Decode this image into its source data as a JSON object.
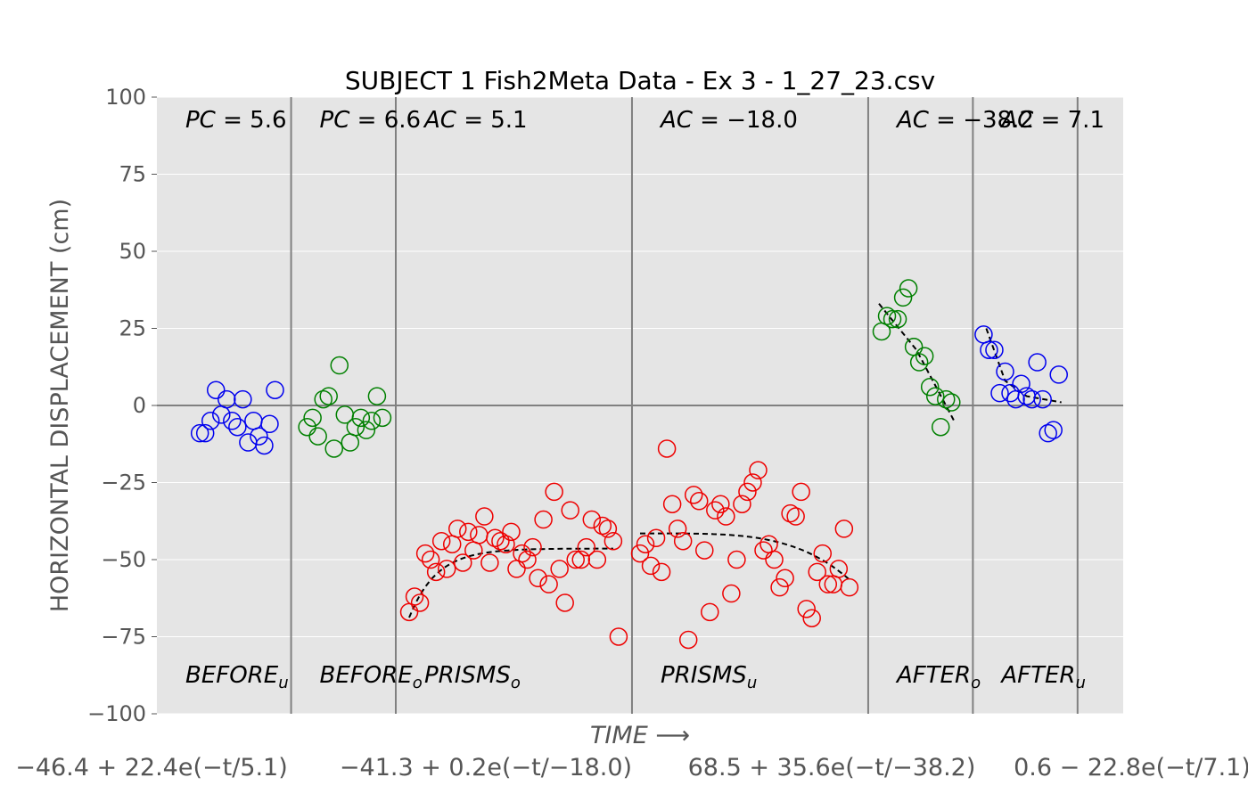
{
  "chart_data": {
    "type": "scatter",
    "title": "SUBJECT 1 Fish2Meta Data - Ex 3 - 1_27_23.csv",
    "xlabel": "TIME ⟶",
    "ylabel": "HORIZONTAL DISPLACEMENT (cm)",
    "xlim": [
      0,
      180
    ],
    "ylim": [
      -100,
      100
    ],
    "y_ticks": [
      100,
      75,
      50,
      25,
      0,
      -25,
      -50,
      -75,
      -100
    ],
    "y_tick_labels": [
      "100",
      "75",
      "50",
      "25",
      "0",
      "−25",
      "−50",
      "−75",
      "−100"
    ],
    "grid": true,
    "zero_line": true,
    "section_boundaries": [
      25,
      44.5,
      88.5,
      132.5,
      152,
      171.5
    ],
    "sections": [
      {
        "label": "BEFORE",
        "sub": "u",
        "metric": "PC",
        "value": "5.6",
        "start": 0,
        "end": 25
      },
      {
        "label": "BEFORE",
        "sub": "o",
        "metric": "PC",
        "value": "6.6",
        "start": 25,
        "end": 44.5
      },
      {
        "label": "PRISMS",
        "sub": "o",
        "metric": "AC",
        "value": "5.1",
        "start": 44.5,
        "end": 88.5
      },
      {
        "label": "PRISMS",
        "sub": "u",
        "metric": "AC",
        "value": "−18.0",
        "start": 88.5,
        "end": 132.5
      },
      {
        "label": "AFTER",
        "sub": "o",
        "metric": "AC",
        "value": "−38.2",
        "start": 132.5,
        "end": 152
      },
      {
        "label": "AFTER",
        "sub": "u",
        "metric": "AC",
        "value": "7.1",
        "start": 152,
        "end": 171.5
      }
    ],
    "series": [
      {
        "color": "#0000ee",
        "x": [
          8,
          9,
          10,
          11,
          12,
          13,
          14,
          15,
          16,
          17,
          18,
          19,
          20,
          21,
          22
        ],
        "y": [
          -9,
          -9,
          -5,
          5,
          -3,
          2,
          -5,
          -7,
          2,
          -12,
          -5,
          -10,
          -13,
          -6,
          5
        ]
      },
      {
        "color": "#008000",
        "x": [
          28,
          29,
          30,
          31,
          32,
          33,
          34,
          35,
          36,
          37,
          38,
          39,
          40,
          41,
          42
        ],
        "y": [
          -7,
          -4,
          -10,
          2,
          3,
          -14,
          13,
          -3,
          -12,
          -7,
          -4,
          -8,
          -5,
          3,
          -4
        ]
      },
      {
        "color": "#ee0000",
        "x": [
          47,
          48,
          49,
          50,
          51,
          52,
          53,
          54,
          55,
          56,
          57,
          58,
          59,
          60,
          61,
          62,
          63,
          64,
          65,
          66,
          67,
          68,
          69,
          70,
          71,
          72,
          73,
          74,
          75,
          76,
          77,
          78,
          79,
          80,
          81,
          82,
          83,
          84,
          85,
          86
        ],
        "y": [
          -67,
          -62,
          -64,
          -48,
          -50,
          -54,
          -44,
          -53,
          -45,
          -40,
          -51,
          -41,
          -47,
          -42,
          -36,
          -51,
          -43,
          -44,
          -45,
          -41,
          -53,
          -48,
          -50,
          -46,
          -56,
          -37,
          -58,
          -28,
          -53,
          -64,
          -34,
          -50,
          -50,
          -46,
          -37,
          -50,
          -39,
          -40,
          -44,
          -75
        ]
      },
      {
        "color": "#ee0000",
        "x": [
          90,
          91,
          92,
          93,
          94,
          95,
          96,
          97,
          98,
          99,
          100,
          101,
          102,
          103,
          104,
          105,
          106,
          107,
          108,
          109,
          110,
          111,
          112,
          113,
          114,
          115,
          116,
          117,
          118,
          119,
          120,
          121,
          122,
          123,
          124,
          125,
          126,
          127,
          128,
          129
        ],
        "y": [
          -48,
          -45,
          -52,
          -43,
          -54,
          -14,
          -32,
          -40,
          -44,
          -76,
          -29,
          -31,
          -47,
          -67,
          -34,
          -32,
          -36,
          -61,
          -50,
          -32,
          -28,
          -25,
          -21,
          -47,
          -45,
          -50,
          -59,
          -56,
          -35,
          -36,
          -28,
          -66,
          -69,
          -54,
          -48,
          -58,
          -58,
          -53,
          -40,
          -59
        ]
      },
      {
        "color": "#008000",
        "x": [
          135,
          136,
          137,
          138,
          139,
          140,
          141,
          142,
          143,
          144,
          145,
          146,
          147,
          148
        ],
        "y": [
          24,
          29,
          28,
          28,
          35,
          38,
          19,
          14,
          16,
          6,
          3,
          -7,
          2,
          1
        ]
      },
      {
        "color": "#0000ee",
        "x": [
          154,
          155,
          156,
          157,
          158,
          159,
          160,
          161,
          162,
          163,
          164,
          165,
          166,
          167,
          168
        ],
        "y": [
          23,
          18,
          18,
          4,
          11,
          4,
          2,
          7,
          3,
          2,
          14,
          2,
          -9,
          -8,
          10
        ]
      }
    ],
    "fits": [
      {
        "x_start": 47,
        "x_end": 85,
        "asymptote": -46.4,
        "amplitude": 22.4,
        "tau": 5.1,
        "shape": "rise"
      },
      {
        "x_start": 90,
        "x_end": 129,
        "asymptote": -41.3,
        "amplitude": 0.2,
        "tau": -18.0,
        "shape": "drop"
      },
      {
        "x_start": 134.5,
        "x_end": 148.5,
        "points": [
          [
            134.5,
            33
          ],
          [
            141.5,
            18
          ],
          [
            148.5,
            -5
          ]
        ]
      },
      {
        "x_start": 154.5,
        "x_end": 168.5,
        "points": [
          [
            154.5,
            25
          ],
          [
            158,
            8
          ],
          [
            162,
            3
          ],
          [
            168.5,
            1
          ]
        ]
      }
    ],
    "fit_formulas": [
      "−46.4 + 22.4e(−t/5.1)",
      "−41.3 + 0.2e(−t/−18.0)",
      "68.5 + 35.6e(−t/−38.2)",
      "0.6 − 22.8e(−t/7.1)"
    ]
  }
}
